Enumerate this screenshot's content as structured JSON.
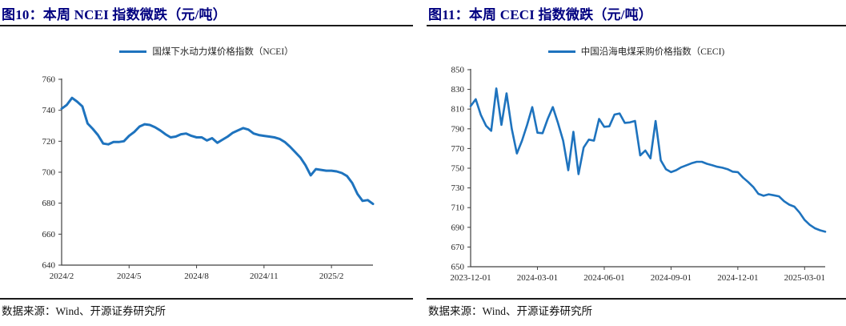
{
  "colors": {
    "title_navy": "#000080",
    "line_blue": "#1E73BE",
    "rule_black": "#1a1a1a",
    "axis_gray": "#404040",
    "tick_text": "#262626"
  },
  "chart_data": [
    {
      "type": "line",
      "title": "图10：本周 NCEI 指数微跌（元/吨）",
      "legend_label": "国煤下水动力煤价格指数（NCEI）",
      "source": "数据来源：Wind、开源证券研究所",
      "line_color": "#1E73BE",
      "ylim": [
        640,
        760
      ],
      "yticks": [
        640,
        660,
        680,
        700,
        720,
        740,
        760
      ],
      "x_tick_labels": [
        "2024/2",
        "2024/5",
        "2024/8",
        "2024/11",
        "2025/2"
      ],
      "x_tick_weeks": [
        0,
        13,
        26,
        39,
        52
      ],
      "grid": false,
      "legend_position": "top-center",
      "series": [
        {
          "name": "国煤下水动力煤价格指数（NCEI）",
          "values": [
            741,
            743.5,
            748,
            745.5,
            742.5,
            731.5,
            728,
            724,
            718.5,
            718,
            719.5,
            719.5,
            720,
            723.5,
            726,
            729.5,
            731,
            730.5,
            729,
            727,
            724.5,
            722.5,
            723,
            724.5,
            725,
            723.5,
            722.5,
            722.5,
            720.5,
            722,
            719,
            721,
            723,
            725.5,
            727,
            728.5,
            727.5,
            725,
            724,
            723.5,
            723,
            722.5,
            721.5,
            719.5,
            716.5,
            713,
            709.5,
            704.5,
            698,
            702,
            701.5,
            701,
            701,
            700.5,
            699.5,
            697.5,
            693,
            686,
            681.5,
            682,
            679.5
          ]
        }
      ]
    },
    {
      "type": "line",
      "title": "图11：本周 CECI 指数微跌（元/吨）",
      "legend_label": "中国沿海电煤采购价格指数（CECI)",
      "source": "数据来源：Wind、开源证券研究所",
      "line_color": "#1E73BE",
      "ylim": [
        650,
        850
      ],
      "yticks": [
        650,
        670,
        690,
        710,
        730,
        750,
        770,
        790,
        810,
        830,
        850
      ],
      "x_tick_labels": [
        "2023-12-01",
        "2024-03-01",
        "2024-06-01",
        "2024-09-01",
        "2024-12-01",
        "2025-03-01"
      ],
      "x_tick_weeks": [
        0,
        13,
        26,
        39,
        52,
        65
      ],
      "grid": false,
      "legend_position": "top-center",
      "series": [
        {
          "name": "中国沿海电煤采购价格指数（CECI)",
          "values": [
            813,
            820,
            804,
            793,
            788,
            831,
            794,
            826,
            790,
            765,
            778,
            794,
            812,
            786,
            785.5,
            800,
            812,
            796,
            778,
            748,
            787,
            744,
            771,
            779,
            778,
            800,
            792,
            792.5,
            804.5,
            805.5,
            796,
            796.5,
            798,
            763,
            768,
            760,
            798,
            758,
            749,
            746,
            748,
            751,
            753,
            755,
            756.5,
            756.5,
            754.5,
            753,
            751.5,
            750.5,
            749,
            746.5,
            746,
            740.5,
            736,
            731,
            724,
            722,
            723.5,
            722.5,
            721.5,
            716.5,
            713,
            711,
            705,
            697.5,
            692.5,
            689,
            687,
            685.5
          ]
        }
      ]
    }
  ]
}
